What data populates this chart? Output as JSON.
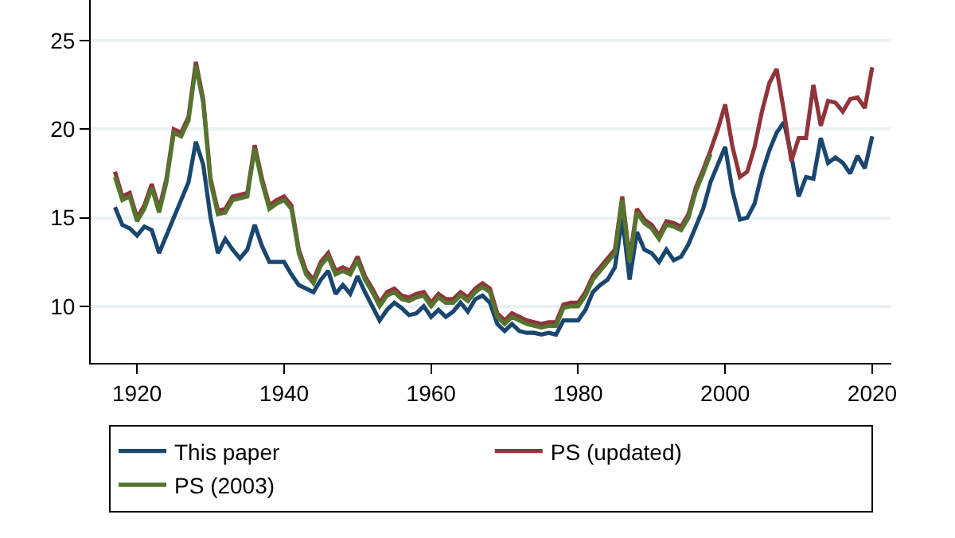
{
  "chart_data": {
    "type": "line",
    "x": [
      1917,
      1918,
      1919,
      1920,
      1921,
      1922,
      1923,
      1924,
      1925,
      1926,
      1927,
      1928,
      1929,
      1930,
      1931,
      1932,
      1933,
      1934,
      1935,
      1936,
      1937,
      1938,
      1939,
      1940,
      1941,
      1942,
      1943,
      1944,
      1945,
      1946,
      1947,
      1948,
      1949,
      1950,
      1951,
      1952,
      1953,
      1954,
      1955,
      1956,
      1957,
      1958,
      1959,
      1960,
      1961,
      1962,
      1963,
      1964,
      1965,
      1966,
      1967,
      1968,
      1969,
      1970,
      1971,
      1972,
      1973,
      1974,
      1975,
      1976,
      1977,
      1978,
      1979,
      1980,
      1981,
      1982,
      1983,
      1984,
      1985,
      1986,
      1987,
      1988,
      1989,
      1990,
      1991,
      1992,
      1993,
      1994,
      1995,
      1996,
      1997,
      1998,
      1999,
      2000,
      2001,
      2002,
      2003,
      2004,
      2005,
      2006,
      2007,
      2008,
      2009,
      2010,
      2011,
      2012,
      2013,
      2014,
      2015,
      2016,
      2017,
      2018,
      2019,
      2020
    ],
    "series": [
      {
        "name": "This paper",
        "color": "#1a476f",
        "values": [
          15.6,
          14.6,
          14.4,
          14.0,
          14.5,
          14.3,
          13.0,
          14.0,
          15.0,
          16.0,
          17.0,
          19.3,
          18.0,
          15.0,
          13.0,
          13.8,
          13.2,
          12.7,
          13.2,
          14.6,
          13.4,
          12.5,
          12.5,
          12.5,
          11.8,
          11.2,
          11.0,
          10.8,
          11.5,
          12.0,
          10.7,
          11.2,
          10.7,
          11.7,
          10.8,
          10.0,
          9.2,
          9.8,
          10.2,
          9.9,
          9.5,
          9.6,
          10.0,
          9.4,
          9.8,
          9.4,
          9.7,
          10.2,
          9.7,
          10.4,
          10.6,
          10.2,
          9.0,
          8.6,
          9.0,
          8.6,
          8.5,
          8.5,
          8.4,
          8.5,
          8.4,
          9.2,
          9.2,
          9.2,
          9.8,
          10.8,
          11.2,
          11.5,
          12.2,
          15.0,
          11.5,
          14.2,
          13.2,
          13.0,
          12.5,
          13.2,
          12.6,
          12.8,
          13.5,
          14.5,
          15.5,
          17.0,
          18.0,
          19.0,
          16.5,
          14.9,
          15.0,
          15.8,
          17.5,
          18.8,
          19.8,
          20.4,
          18.5,
          16.2,
          17.3,
          17.2,
          19.5,
          18.1,
          18.4,
          18.1,
          17.5,
          18.5,
          17.8,
          19.6
        ]
      },
      {
        "name": "PS (updated)",
        "color": "#90353b",
        "values": [
          17.6,
          16.2,
          16.4,
          15.0,
          15.7,
          16.9,
          15.5,
          17.2,
          20.0,
          19.8,
          20.7,
          23.8,
          21.7,
          17.2,
          15.4,
          15.5,
          16.2,
          16.3,
          16.4,
          19.1,
          17.2,
          15.7,
          16.0,
          16.2,
          15.7,
          13.2,
          12.0,
          11.5,
          12.5,
          13.0,
          12.0,
          12.2,
          12.0,
          12.8,
          11.7,
          11.0,
          10.2,
          10.8,
          11.0,
          10.6,
          10.5,
          10.7,
          10.8,
          10.2,
          10.7,
          10.4,
          10.4,
          10.8,
          10.5,
          11.0,
          11.3,
          11.0,
          9.6,
          9.2,
          9.6,
          9.4,
          9.2,
          9.1,
          9.0,
          9.1,
          9.1,
          10.1,
          10.2,
          10.2,
          10.8,
          11.7,
          12.2,
          12.7,
          13.2,
          16.2,
          12.7,
          15.5,
          14.9,
          14.6,
          14.0,
          14.8,
          14.7,
          14.5,
          15.2,
          16.7,
          17.7,
          18.8,
          20.0,
          21.4,
          19.0,
          17.3,
          17.6,
          19.0,
          21.0,
          22.6,
          23.4,
          21.0,
          18.2,
          19.5,
          19.5,
          22.5,
          20.2,
          21.6,
          21.5,
          21.0,
          21.7,
          21.8,
          21.2,
          23.5
        ]
      },
      {
        "name": "PS (2003)",
        "color": "#55752f",
        "values": [
          17.3,
          16.0,
          16.2,
          14.8,
          15.5,
          16.7,
          15.3,
          17.0,
          19.8,
          19.6,
          20.5,
          23.6,
          21.5,
          17.0,
          15.2,
          15.3,
          16.0,
          16.1,
          16.2,
          18.9,
          17.0,
          15.5,
          15.8,
          16.0,
          15.5,
          13.0,
          11.8,
          11.3,
          12.3,
          12.8,
          11.8,
          12.0,
          11.8,
          12.6,
          11.5,
          10.8,
          10.0,
          10.6,
          10.8,
          10.4,
          10.3,
          10.5,
          10.6,
          10.0,
          10.5,
          10.2,
          10.2,
          10.6,
          10.3,
          10.8,
          11.1,
          10.8,
          9.4,
          9.0,
          9.4,
          9.2,
          9.0,
          8.9,
          8.8,
          8.9,
          8.9,
          9.9,
          10.0,
          10.0,
          10.6,
          11.5,
          12.0,
          12.5,
          13.0,
          16.0,
          12.5,
          15.3,
          14.7,
          14.4,
          13.8,
          14.6,
          14.5,
          14.3,
          15.0,
          16.5,
          17.5,
          18.6,
          null,
          null,
          null,
          null,
          null,
          null,
          null,
          null,
          null,
          null,
          null,
          null,
          null,
          null,
          null,
          null,
          null,
          null,
          null,
          null,
          null,
          null
        ]
      }
    ],
    "xlim": [
      1913.7,
      2022.6
    ],
    "xticks": [
      1920,
      1940,
      1960,
      1980,
      2000,
      2020
    ],
    "ylim": [
      6.8,
      27.3
    ],
    "yticks": [
      10,
      15,
      20,
      25
    ],
    "grid": "y",
    "legend": "bottom",
    "marker": "none",
    "line_style": "solid"
  }
}
